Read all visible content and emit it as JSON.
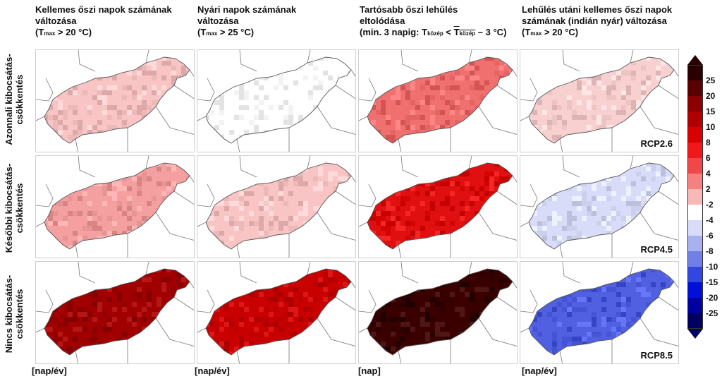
{
  "columns": [
    {
      "title_lines": [
        "Kellemes őszi napok számának",
        "változása",
        "(T<sub>max</sub> > 20 °C)"
      ],
      "unit": "[nap/év]"
    },
    {
      "title_lines": [
        "Nyári napok számának",
        "változása",
        "(T<sub>max</sub> > 25 °C)"
      ],
      "unit": "[nap/év]"
    },
    {
      "title_lines": [
        "Tartósabb őszi lehűlés",
        "eltolódása",
        "(min. 3 napig: T<sub>közép</sub> < T<sub>közép</sub> – 3 °C)"
      ],
      "unit": "[nap]"
    },
    {
      "title_lines": [
        "Lehűlés utáni kellemes őszi napok",
        "számának (indián nyár) változása",
        "(T<sub>max</sub> > 20 °C)"
      ],
      "unit": "[nap/év]"
    }
  ],
  "rows": [
    {
      "label": "Azonnali kibocsátás-csökkentés",
      "scenario": "RCP2.6"
    },
    {
      "label": "Későbbi kibocsátás-csökkentés",
      "scenario": "RCP4.5"
    },
    {
      "label": "Nincs kibocsátás-csökkentés",
      "scenario": "RCP8.5"
    }
  ],
  "legend": {
    "ticks": [
      "25",
      "20",
      "15",
      "10",
      "8",
      "6",
      "4",
      "2",
      "-2",
      "-4",
      "-6",
      "-8",
      "-10",
      "-15",
      "-20",
      "-25"
    ],
    "colors": [
      "#2a0000",
      "#5a0000",
      "#8a0000",
      "#b00000",
      "#d80000",
      "#f01818",
      "#f04848",
      "#f58080",
      "#f8b8b8",
      "#ffffff",
      "#d8dcf8",
      "#a8b0f0",
      "#7080e8",
      "#3048e0",
      "#0010d8",
      "#0000a0",
      "#000060"
    ]
  },
  "panels": [
    [
      "#f8c4c4",
      "#ffffff",
      "#f07070",
      "#f8d0d0"
    ],
    [
      "#f5a0a0",
      "#f8c4c4",
      "#e01010",
      "#d8dcf8"
    ],
    [
      "#a00000",
      "#c80000",
      "#3a0000",
      "#5060e0"
    ]
  ]
}
